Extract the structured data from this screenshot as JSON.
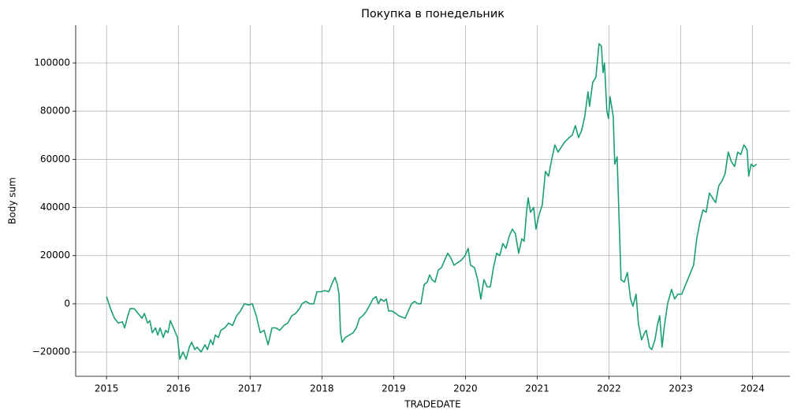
{
  "chart_data": {
    "type": "line",
    "title": "Покупка в понедельник",
    "x_label": "TRADEDATE",
    "y_label": "Body sum",
    "color": "#1b9e77",
    "grid": true,
    "xlim": [
      2014.57,
      2024.52
    ],
    "xticks": [
      2015,
      2016,
      2017,
      2018,
      2019,
      2020,
      2021,
      2022,
      2023,
      2024
    ],
    "ylim": [
      -30100,
      115700
    ],
    "yticks": [
      {
        "value": -20000,
        "label": "−20000"
      },
      0,
      20000,
      40000,
      60000,
      80000,
      100000
    ],
    "x": [
      2015.0,
      2015.055,
      2015.11,
      2015.165,
      2015.22,
      2015.252,
      2015.296,
      2015.329,
      2015.384,
      2015.439,
      2015.494,
      2015.527,
      2015.571,
      2015.604,
      2015.637,
      2015.681,
      2015.714,
      2015.746,
      2015.79,
      2015.823,
      2015.856,
      2015.889,
      2015.933,
      2015.988,
      2016.021,
      2016.065,
      2016.109,
      2016.153,
      2016.186,
      2016.229,
      2016.262,
      2016.317,
      2016.372,
      2016.405,
      2016.449,
      2016.482,
      2016.515,
      2016.559,
      2016.592,
      2016.647,
      2016.701,
      2016.756,
      2016.811,
      2016.866,
      2016.921,
      2016.976,
      2017.031,
      2017.086,
      2017.141,
      2017.195,
      2017.25,
      2017.305,
      2017.36,
      2017.415,
      2017.47,
      2017.525,
      2017.58,
      2017.634,
      2017.689,
      2017.722,
      2017.777,
      2017.832,
      2017.887,
      2017.931,
      2017.986,
      2018.041,
      2018.096,
      2018.15,
      2018.183,
      2018.216,
      2018.238,
      2018.26,
      2018.282,
      2018.326,
      2018.381,
      2018.436,
      2018.48,
      2018.524,
      2018.568,
      2018.622,
      2018.677,
      2018.71,
      2018.754,
      2018.787,
      2018.82,
      2018.864,
      2018.897,
      2018.93,
      2018.974,
      2019.029,
      2019.072,
      2019.116,
      2019.16,
      2019.204,
      2019.248,
      2019.292,
      2019.336,
      2019.38,
      2019.424,
      2019.468,
      2019.501,
      2019.534,
      2019.577,
      2019.621,
      2019.665,
      2019.709,
      2019.753,
      2019.797,
      2019.841,
      2019.885,
      2019.94,
      2019.995,
      2020.038,
      2020.071,
      2020.126,
      2020.17,
      2020.214,
      2020.258,
      2020.302,
      2020.346,
      2020.39,
      2020.434,
      2020.478,
      2020.521,
      2020.565,
      2020.609,
      2020.653,
      2020.697,
      2020.741,
      2020.785,
      2020.818,
      2020.851,
      2020.873,
      2020.906,
      2020.95,
      2020.982,
      2021.026,
      2021.07,
      2021.114,
      2021.158,
      2021.202,
      2021.246,
      2021.29,
      2021.334,
      2021.378,
      2021.443,
      2021.487,
      2021.531,
      2021.575,
      2021.619,
      2021.663,
      2021.707,
      2021.729,
      2021.773,
      2021.817,
      2021.861,
      2021.894,
      2021.916,
      2021.937,
      2021.97,
      2021.992,
      2022.014,
      2022.058,
      2022.08,
      2022.113,
      2022.135,
      2022.168,
      2022.212,
      2022.256,
      2022.3,
      2022.333,
      2022.377,
      2022.409,
      2022.453,
      2022.497,
      2022.519,
      2022.563,
      2022.596,
      2022.64,
      2022.673,
      2022.706,
      2022.739,
      2022.772,
      2022.816,
      2022.871,
      2022.914,
      2022.958,
      2023.013,
      2023.068,
      2023.123,
      2023.178,
      2023.222,
      2023.266,
      2023.31,
      2023.354,
      2023.398,
      2023.441,
      2023.485,
      2023.529,
      2023.573,
      2023.617,
      2023.661,
      2023.705,
      2023.749,
      2023.793,
      2023.836,
      2023.88,
      2023.924,
      2023.946,
      2023.979,
      2024.012,
      2024.056
    ],
    "values": [
      3000,
      -2000,
      -6000,
      -8000,
      -7500,
      -10000,
      -5000,
      -2000,
      -2000,
      -4000,
      -6000,
      -4000,
      -8000,
      -7000,
      -12000,
      -10000,
      -13000,
      -10000,
      -14000,
      -11000,
      -12000,
      -7000,
      -10000,
      -14000,
      -23000,
      -20000,
      -23000,
      -18000,
      -16000,
      -19000,
      -18000,
      -20000,
      -17000,
      -19000,
      -15000,
      -17000,
      -13000,
      -14000,
      -11000,
      -10000,
      -8000,
      -9000,
      -5000,
      -3000,
      0,
      -500,
      0,
      -5000,
      -12000,
      -11000,
      -17000,
      -10000,
      -10000,
      -11000,
      -9000,
      -8000,
      -5000,
      -4000,
      -2000,
      0,
      1000,
      0,
      0,
      5000,
      5000,
      5500,
      5000,
      9000,
      11000,
      8000,
      4000,
      -12000,
      -16000,
      -14000,
      -13000,
      -12000,
      -10000,
      -6000,
      -5000,
      -3000,
      0,
      2000,
      3000,
      0,
      2000,
      1000,
      2000,
      -3000,
      -3000,
      -4000,
      -5000,
      -5500,
      -6000,
      -3000,
      0,
      1000,
      0,
      0,
      8000,
      9000,
      12000,
      10000,
      9000,
      14000,
      15000,
      18000,
      21000,
      19000,
      16000,
      17000,
      18000,
      20000,
      23000,
      16000,
      15000,
      10000,
      2000,
      10000,
      7000,
      7000,
      15000,
      21000,
      20000,
      25000,
      23000,
      28000,
      31000,
      29000,
      21000,
      27000,
      26000,
      38000,
      44000,
      38000,
      40000,
      31000,
      37000,
      41000,
      55000,
      53000,
      60000,
      66000,
      63000,
      65000,
      67000,
      69000,
      70000,
      74000,
      69000,
      72000,
      78000,
      88000,
      82000,
      92000,
      94000,
      108000,
      107000,
      96000,
      100000,
      80000,
      77000,
      86000,
      78000,
      58000,
      61000,
      40000,
      10000,
      9000,
      13000,
      2000,
      -1000,
      4000,
      -8000,
      -15000,
      -12000,
      -11000,
      -18000,
      -19000,
      -15000,
      -9000,
      -5000,
      -18000,
      -9000,
      0,
      6000,
      2000,
      4000,
      4000,
      8000,
      12000,
      16000,
      27000,
      34000,
      39000,
      38000,
      46000,
      44000,
      42000,
      49000,
      51000,
      54000,
      63000,
      59000,
      57000,
      63000,
      62000,
      66000,
      64000,
      53000,
      58000,
      57000,
      58000
    ]
  }
}
